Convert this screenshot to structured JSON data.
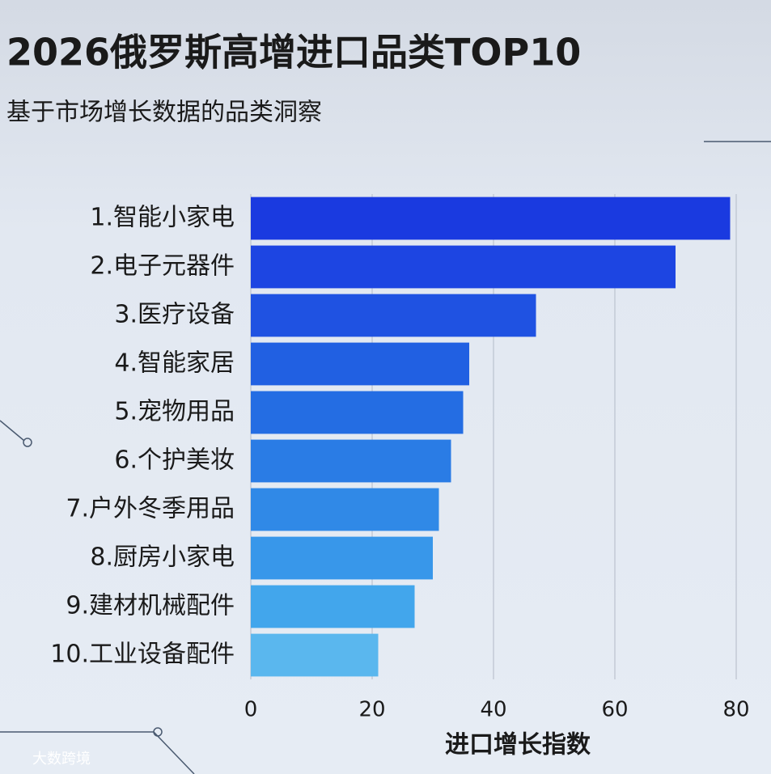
{
  "chart_data": {
    "type": "bar",
    "orientation": "horizontal",
    "title": "2026俄罗斯高增进口品类TOP10",
    "subtitle": "基于市场增长数据的品类洞察",
    "x_label": "进口增长指数",
    "categories": [
      "1.智能小家电",
      "2.电子元器件",
      "3.医疗设备",
      "4.智能家居",
      "5.宠物用品",
      "6.个护美妆",
      "7.户外冬季用品",
      "8.厨房小家电",
      "9.建材机械配件",
      "10.工业设备配件"
    ],
    "values": [
      79,
      70,
      47,
      36,
      35,
      33,
      31,
      30,
      27,
      21
    ],
    "colors": [
      "#1a3ae0",
      "#1d45e2",
      "#1f52e2",
      "#2160e2",
      "#246de3",
      "#2a7ce5",
      "#3089e7",
      "#3897ea",
      "#42a6ec",
      "#5ab7ee"
    ],
    "xlim": [
      0,
      82
    ],
    "xticks": [
      0,
      20,
      40,
      60,
      80
    ],
    "grid": true,
    "watermark": "大数跨境"
  }
}
